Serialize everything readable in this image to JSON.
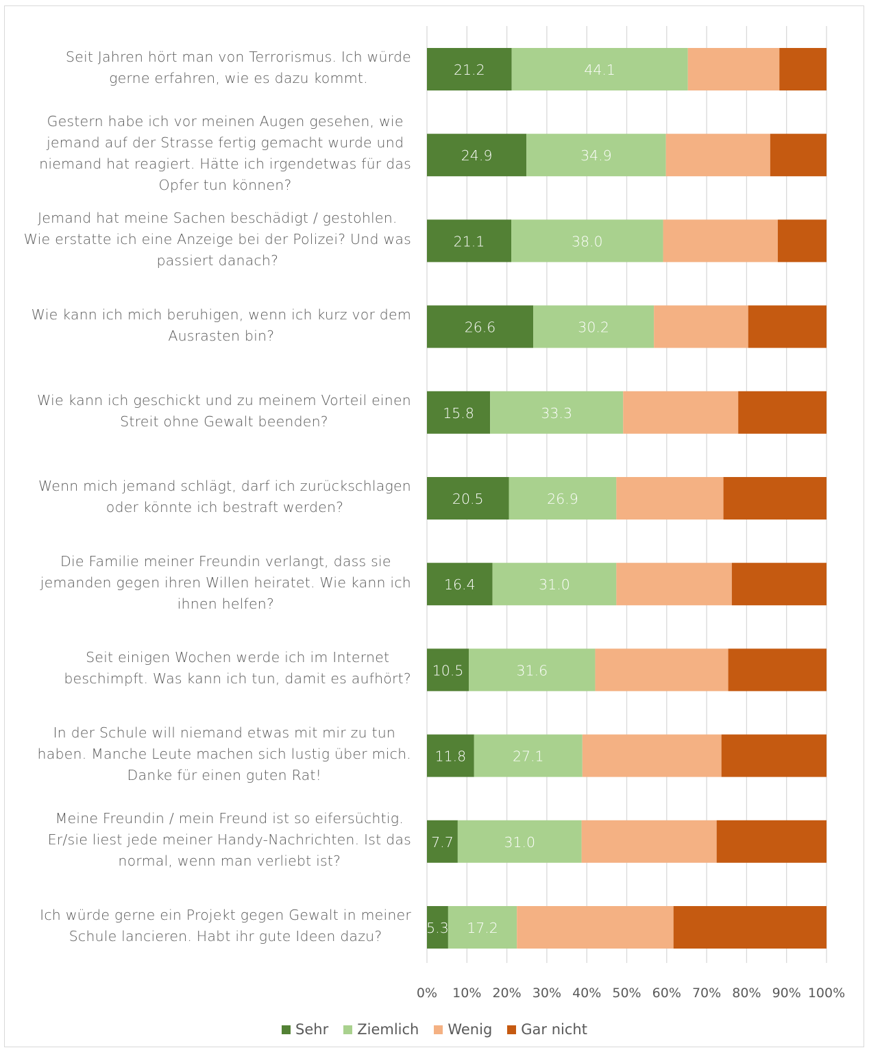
{
  "chart_data": {
    "type": "bar",
    "orientation": "horizontal",
    "stacked": "percent",
    "categories": [
      "Seit Jahren hört man von Terrorismus. Ich würde gerne erfahren, wie es dazu kommt.",
      "Gestern habe ich vor meinen Augen gesehen, wie jemand auf der Strasse fertig gemacht wurde und niemand hat reagiert. Hätte ich irgendetwas für das Opfer tun können?",
      "Jemand hat meine Sachen beschädigt / gestohlen. Wie erstatte ich eine Anzeige bei der Polizei? Und was passiert danach?",
      "Wie kann ich mich beruhigen, wenn ich kurz vor dem Ausrasten bin?",
      "Wie kann ich geschickt und zu meinem Vorteil einen Streit ohne Gewalt beenden?",
      "Wenn mich jemand schlägt, darf ich zurückschlagen oder könnte ich bestraft werden?",
      "Die Familie meiner Freundin verlangt, dass sie jemanden gegen ihren Willen heiratet. Wie kann ich ihnen helfen?",
      "Seit einigen Wochen werde ich im Internet beschimpft. Was kann ich tun, damit es aufhört?",
      "In der Schule will niemand etwas mit mir zu tun haben. Manche Leute machen sich lustig über mich. Danke für einen guten Rat!",
      "Meine Freundin / mein Freund ist so eifersüchtig. Er/sie liest jede meiner Handy-Nachrichten. Ist das normal, wenn man verliebt ist?",
      "Ich würde gerne ein Projekt gegen Gewalt in meiner Schule lancieren. Habt ihr gute Ideen dazu?"
    ],
    "category_lines": [
      [
        "Seit Jahren hört man von Terrorismus. Ich würde",
        "gerne erfahren, wie es dazu kommt."
      ],
      [
        "Gestern habe ich vor meinen Augen gesehen, wie",
        "jemand auf der Strasse fertig gemacht wurde und",
        "niemand hat reagiert. Hätte ich irgendetwas für das",
        "Opfer tun können?"
      ],
      [
        "Jemand hat meine Sachen beschädigt / gestohlen.",
        "Wie erstatte ich eine Anzeige bei der Polizei? Und was",
        "passiert danach?"
      ],
      [
        "Wie kann ich mich beruhigen, wenn ich kurz vor dem",
        "Ausrasten bin?"
      ],
      [
        "Wie kann ich geschickt und zu meinem Vorteil einen",
        "Streit ohne Gewalt beenden?"
      ],
      [
        "Wenn mich jemand schlägt, darf ich zurückschlagen",
        "oder könnte ich bestraft werden?"
      ],
      [
        "Die Familie meiner Freundin verlangt, dass sie",
        "jemanden gegen ihren Willen heiratet. Wie kann ich",
        "ihnen helfen?"
      ],
      [
        "Seit einigen Wochen werde ich im Internet",
        "beschimpft. Was kann ich tun, damit es aufhört?"
      ],
      [
        "In der Schule will niemand etwas mit mir zu tun",
        "haben. Manche Leute machen sich lustig über mich.",
        "Danke für einen guten Rat!"
      ],
      [
        "Meine Freundin / mein Freund ist so eifersüchtig.",
        "Er/sie liest jede meiner Handy-Nachrichten. Ist das",
        "normal, wenn man verliebt ist?"
      ],
      [
        "Ich würde gerne ein Projekt gegen Gewalt in meiner",
        "Schule lancieren. Habt ihr gute Ideen dazu?"
      ]
    ],
    "series": [
      {
        "name": "Sehr",
        "color": "#538135",
        "values": [
          21.2,
          24.9,
          21.1,
          26.6,
          15.8,
          20.5,
          16.4,
          10.5,
          11.8,
          7.7,
          5.3
        ],
        "labels_shown": true
      },
      {
        "name": "Ziemlich",
        "color": "#a9d18e",
        "values": [
          44.1,
          34.9,
          38.0,
          30.2,
          33.3,
          26.9,
          31.0,
          31.6,
          27.1,
          31.0,
          17.2
        ],
        "labels_shown": true
      },
      {
        "name": "Wenig",
        "color": "#f4b183",
        "values": [
          22.9,
          26.1,
          28.7,
          23.6,
          28.8,
          26.8,
          28.9,
          33.3,
          34.8,
          33.8,
          39.2
        ],
        "labels_shown": false
      },
      {
        "name": "Gar nicht",
        "color": "#c55a11",
        "values": [
          11.8,
          14.1,
          12.2,
          19.6,
          22.1,
          25.8,
          23.7,
          24.6,
          26.3,
          27.5,
          38.3
        ],
        "labels_shown": false
      }
    ],
    "value_labels": [
      [
        "21.2",
        "44.1"
      ],
      [
        "24.9",
        "34.9"
      ],
      [
        "21.1",
        "38.0"
      ],
      [
        "26.6",
        "30.2"
      ],
      [
        "15.8",
        "33.3"
      ],
      [
        "20.5",
        "26.9"
      ],
      [
        "16.4",
        "31.0"
      ],
      [
        "10.5",
        "31.6"
      ],
      [
        "11.8",
        "27.1"
      ],
      [
        "7.7",
        "31.0"
      ],
      [
        "5.3",
        "17.2"
      ]
    ],
    "x_ticks": [
      "0%",
      "10%",
      "20%",
      "30%",
      "40%",
      "50%",
      "60%",
      "70%",
      "80%",
      "90%",
      "100%"
    ],
    "xlim": [
      0,
      100
    ],
    "grid": true,
    "legend_position": "bottom"
  }
}
